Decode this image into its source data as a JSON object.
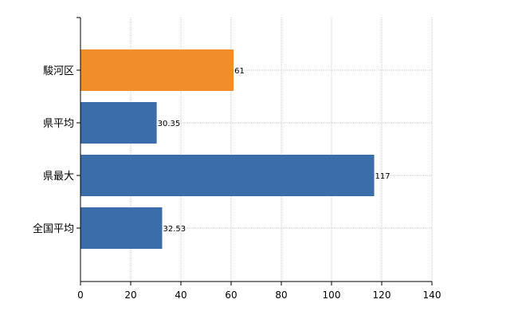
{
  "chart_data": {
    "type": "bar",
    "orientation": "horizontal",
    "categories": [
      "駿河区",
      "県平均",
      "県最大",
      "全国平均"
    ],
    "values": [
      61,
      30.35,
      117,
      32.53
    ],
    "data_labels": [
      "61",
      "30.35",
      "117",
      "32.53"
    ],
    "bar_colors": [
      "#EF8E2B",
      "#3A6DAA",
      "#3A6DAA",
      "#3A6DAA"
    ],
    "xlim": [
      0,
      140
    ],
    "x_ticks": [
      0,
      20,
      40,
      60,
      80,
      100,
      120,
      140
    ],
    "title": "",
    "xlabel": "",
    "ylabel": "",
    "grid": true,
    "grid_style": "dotted",
    "legend": "none"
  }
}
